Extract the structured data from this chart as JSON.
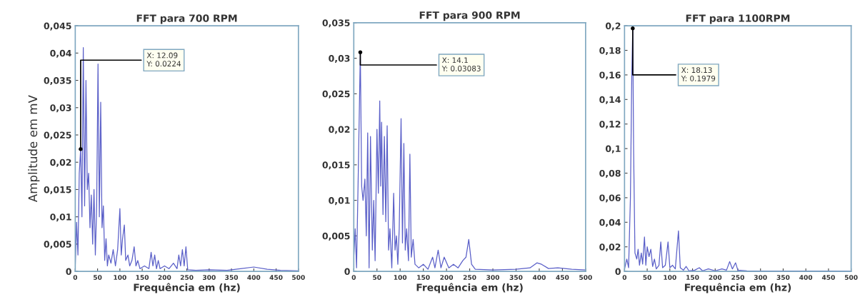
{
  "chart_data": [
    {
      "type": "line",
      "title": "FFT para 700 RPM",
      "xlabel": "Frequência em (hz)",
      "ylabel": "Amplitude em mV",
      "xlim": [
        0,
        500
      ],
      "xticks": [
        0,
        50,
        100,
        150,
        200,
        250,
        300,
        350,
        400,
        450,
        500
      ],
      "ylim": [
        0,
        0.045
      ],
      "yticks": [
        0,
        {
          "value": 0.005,
          "label": "0,005"
        },
        {
          "value": 0.01,
          "label": "0,01"
        },
        {
          "value": 0.015,
          "label": "0,015"
        },
        {
          "value": 0.02,
          "label": "0,02"
        },
        {
          "value": 0.025,
          "label": "0,025"
        },
        {
          "value": 0.03,
          "label": "0,03"
        },
        {
          "value": 0.035,
          "label": "0,035"
        },
        {
          "value": 0.04,
          "label": "0,04"
        },
        {
          "value": 0.045,
          "label": "0,045"
        }
      ],
      "grid": false,
      "legend": false,
      "annotations": [
        {
          "text": "X: 12.09\nY: 0.0224",
          "x": 12.09,
          "y": 0.0224
        }
      ],
      "series": [
        {
          "color": "#5a5fc8",
          "x": [
            0,
            3,
            6,
            9,
            12.09,
            15,
            18,
            21,
            24,
            27,
            30,
            33,
            36,
            39,
            42,
            45,
            48,
            51,
            54,
            57,
            60,
            63,
            66,
            69,
            72,
            75,
            80,
            85,
            90,
            95,
            100,
            103,
            106,
            110,
            113,
            118,
            122,
            127,
            132,
            136,
            140,
            145,
            155,
            165,
            170,
            174,
            178,
            182,
            186,
            190,
            200,
            210,
            220,
            228,
            232,
            236,
            240,
            244,
            248,
            252,
            270,
            300,
            340,
            370,
            400,
            430,
            460,
            500
          ],
          "values": [
            0.001,
            0.009,
            0.003,
            0.018,
            0.0224,
            0.01,
            0.041,
            0.012,
            0.035,
            0.015,
            0.018,
            0.008,
            0.014,
            0.005,
            0.015,
            0.003,
            0.012,
            0.038,
            0.01,
            0.031,
            0.008,
            0.012,
            0.002,
            0.006,
            0.001,
            0.003,
            0.0015,
            0.004,
            0.001,
            0.004,
            0.0115,
            0.003,
            0.006,
            0.0085,
            0.002,
            0.003,
            0.001,
            0.002,
            0.0045,
            0.001,
            0.002,
            0.0005,
            0.001,
            0.0005,
            0.0035,
            0.001,
            0.003,
            0.0005,
            0.002,
            0.0005,
            0.001,
            0.0005,
            0.0015,
            0.0005,
            0.003,
            0.001,
            0.004,
            0.001,
            0.0045,
            0.0003,
            0.0002,
            0.0003,
            0.0002,
            0.0005,
            0.0008,
            0.0004,
            0.0002,
            0.0001
          ]
        }
      ]
    },
    {
      "type": "line",
      "title": "FFT para 900 RPM",
      "xlabel": "Frequência em (hz)",
      "xlim": [
        0,
        500
      ],
      "xticks": [
        0,
        50,
        100,
        150,
        200,
        250,
        300,
        350,
        400,
        450,
        500
      ],
      "ylim": [
        0,
        0.035
      ],
      "yticks": [
        0,
        {
          "value": 0.005,
          "label": "0,005"
        },
        {
          "value": 0.01,
          "label": "0,01"
        },
        {
          "value": 0.015,
          "label": "0,015"
        },
        {
          "value": 0.02,
          "label": "0,02"
        },
        {
          "value": 0.025,
          "label": "0,025"
        },
        {
          "value": 0.03,
          "label": "0,03"
        },
        {
          "value": 0.035,
          "label": "0,035"
        }
      ],
      "grid": false,
      "legend": false,
      "annotations": [
        {
          "text": "X: 14.1\nY: 0.03083",
          "x": 14.1,
          "y": 0.03083
        }
      ],
      "series": [
        {
          "color": "#5a5fc8",
          "x": [
            0,
            3,
            6,
            10,
            14.1,
            17,
            20,
            24,
            27,
            30,
            33,
            36,
            40,
            43,
            46,
            50,
            53,
            56,
            58,
            60,
            63,
            66,
            69,
            72,
            75,
            78,
            82,
            86,
            89,
            92,
            95,
            98,
            102,
            105,
            108,
            111,
            114,
            118,
            121,
            124,
            128,
            132,
            140,
            150,
            160,
            170,
            175,
            182,
            188,
            195,
            205,
            215,
            225,
            235,
            242,
            248,
            254,
            262,
            300,
            350,
            380,
            395,
            405,
            420,
            440,
            470,
            500
          ],
          "values": [
            0.002,
            0.006,
            0.0005,
            0.015,
            0.03083,
            0.012,
            0.01,
            0.013,
            0.005,
            0.0195,
            0.0005,
            0.019,
            0.003,
            0.01,
            0.0015,
            0.02,
            0.011,
            0.024,
            0.012,
            0.021,
            0.008,
            0.019,
            0.007,
            0.0205,
            0.003,
            0.006,
            0.0005,
            0.011,
            0.003,
            0.005,
            0.001,
            0.006,
            0.0215,
            0.004,
            0.018,
            0.003,
            0.006,
            0.0015,
            0.0165,
            0.002,
            0.0045,
            0.001,
            0.0005,
            0.001,
            0.0003,
            0.002,
            0.0005,
            0.003,
            0.0005,
            0.002,
            0.0005,
            0.001,
            0.0005,
            0.0015,
            0.002,
            0.0045,
            0.001,
            0.0003,
            0.0002,
            0.0003,
            0.0005,
            0.0012,
            0.001,
            0.0004,
            0.0005,
            0.0003,
            0.0002
          ]
        }
      ]
    },
    {
      "type": "line",
      "title": "FFT para 1100RPM",
      "xlabel": "Frequência em (hz)",
      "xlim": [
        0,
        500
      ],
      "xticks": [
        0,
        50,
        100,
        150,
        200,
        250,
        300,
        350,
        400,
        450,
        500
      ],
      "ylim": [
        0,
        0.2
      ],
      "yticks": [
        0,
        {
          "value": 0.02,
          "label": "0,02"
        },
        {
          "value": 0.04,
          "label": "0,04"
        },
        {
          "value": 0.06,
          "label": "0,06"
        },
        {
          "value": 0.08,
          "label": "0,08"
        },
        {
          "value": 0.1,
          "label": "0,1"
        },
        {
          "value": 0.12,
          "label": "0,12"
        },
        {
          "value": 0.14,
          "label": "0,14"
        },
        {
          "value": 0.16,
          "label": "0,16"
        },
        {
          "value": 0.18,
          "label": "0,18"
        },
        {
          "value": 0.2,
          "label": "0,2"
        }
      ],
      "grid": false,
      "legend": false,
      "annotations": [
        {
          "text": "X: 18.13\nY: 0.1979",
          "x": 18.13,
          "y": 0.1979
        }
      ],
      "series": [
        {
          "color": "#5a5fc8",
          "x": [
            0,
            5,
            9,
            13,
            16,
            18.13,
            20,
            23,
            27,
            30,
            33,
            37,
            40,
            44,
            47,
            50,
            54,
            58,
            62,
            66,
            70,
            76,
            80,
            84,
            90,
            96,
            100,
            106,
            112,
            119,
            123,
            130,
            136,
            142,
            155,
            165,
            172,
            185,
            200,
            215,
            225,
            232,
            238,
            245,
            250,
            270,
            350,
            450,
            500
          ],
          "values": [
            0.002,
            0.01,
            0.003,
            0.06,
            0.16,
            0.1979,
            0.1,
            0.015,
            0.01,
            0.018,
            0.005,
            0.015,
            0.006,
            0.028,
            0.005,
            0.02,
            0.012,
            0.018,
            0.004,
            0.01,
            0.002,
            0.005,
            0.024,
            0.003,
            0.005,
            0.024,
            0.003,
            0.005,
            0.002,
            0.033,
            0.003,
            0.001,
            0.004,
            0.0005,
            0.001,
            0.003,
            0.0005,
            0.002,
            0.0005,
            0.002,
            0.001,
            0.008,
            0.002,
            0.007,
            0.001,
            0.0005,
            0.0003,
            0.0003,
            0.0002
          ]
        }
      ]
    }
  ]
}
